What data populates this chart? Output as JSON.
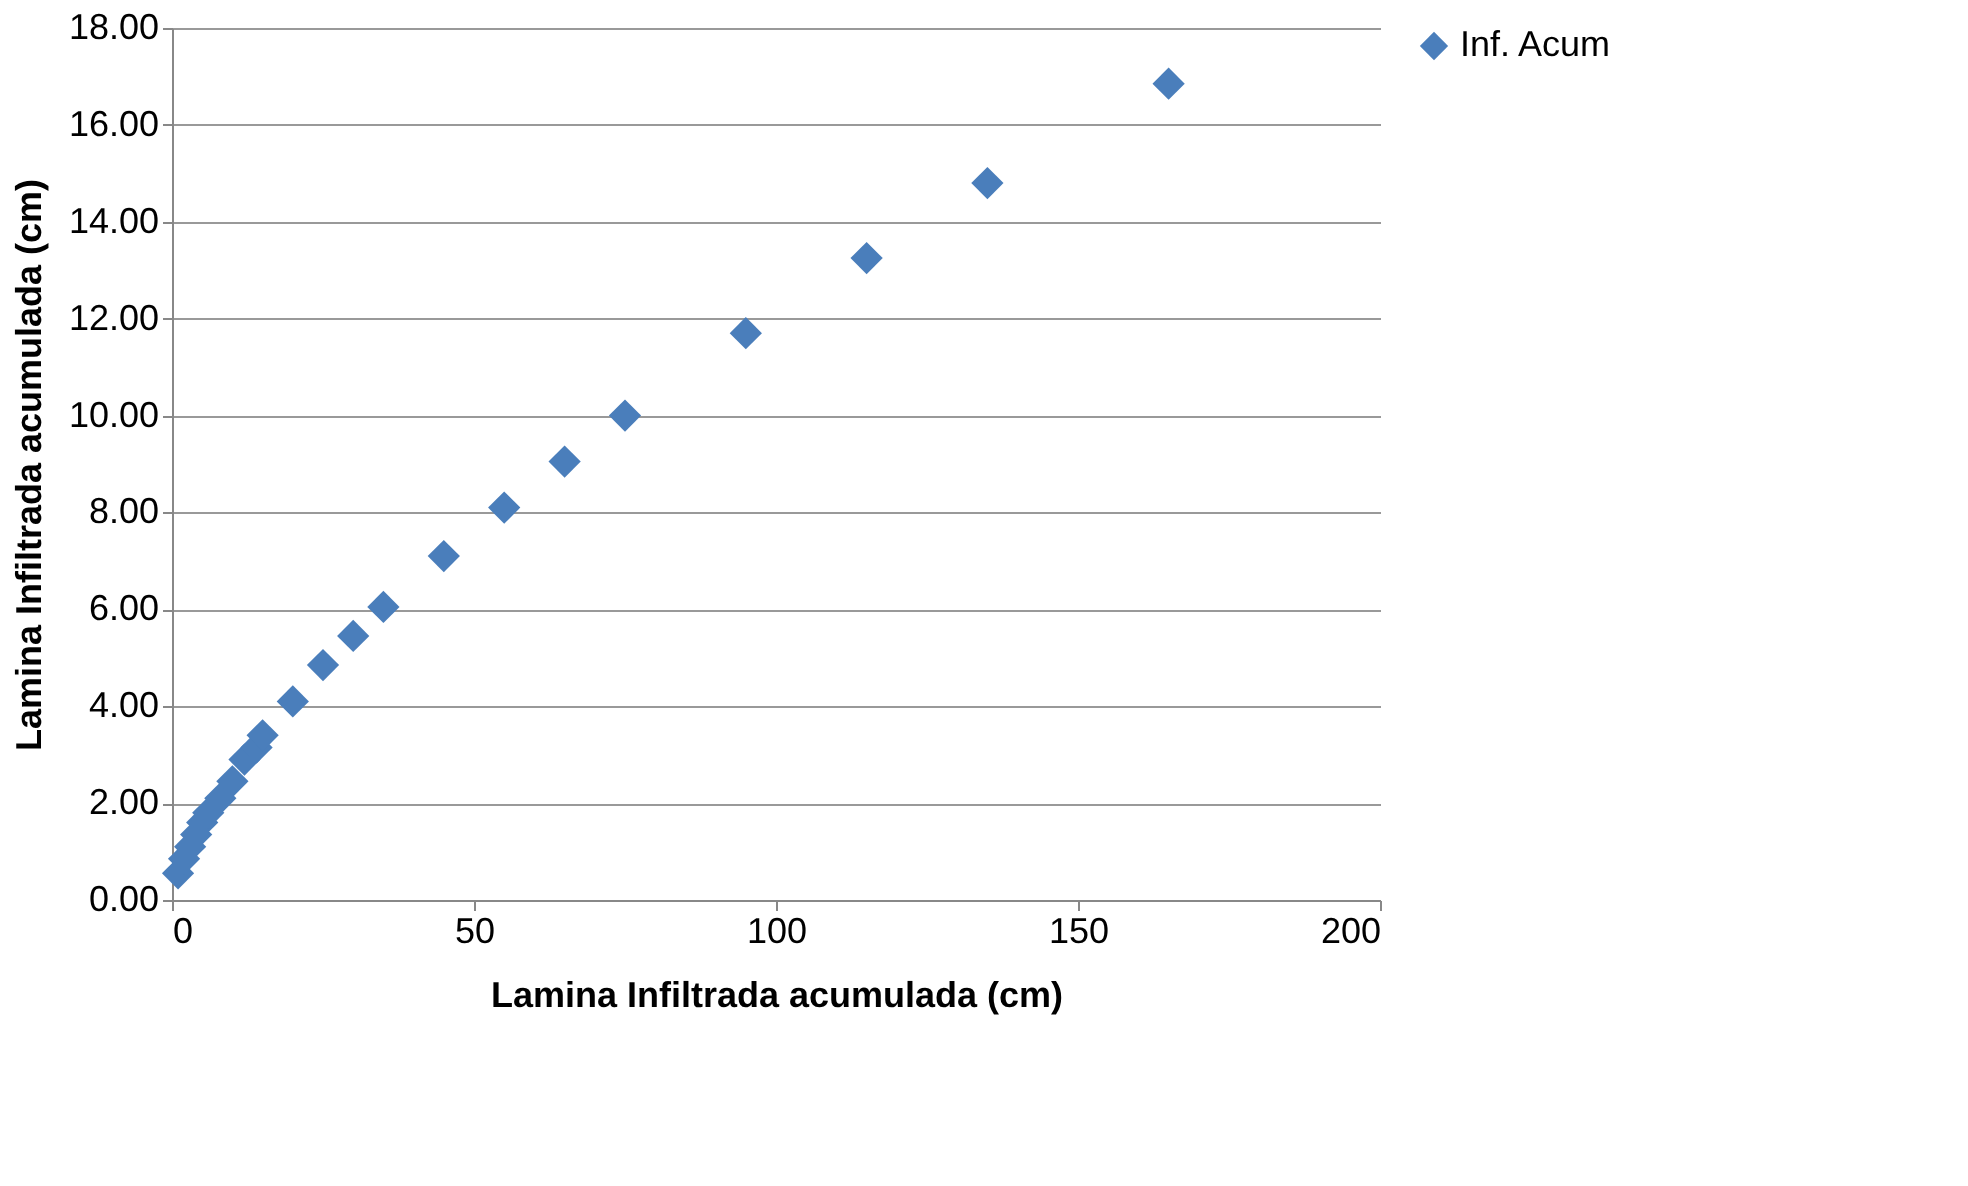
{
  "chart_data": {
    "type": "scatter",
    "xlabel": "Lamina Infiltrada acumulada (cm)",
    "ylabel": "Lamina Infiltrada acumulada (cm)",
    "xlim": [
      0,
      200
    ],
    "xticks": [
      0,
      50,
      100,
      150,
      200
    ],
    "ylim": [
      0,
      18
    ],
    "yticks": [
      {
        "value": 0,
        "label": "0.00"
      },
      {
        "value": 2,
        "label": "2.00"
      },
      {
        "value": 4,
        "label": "4.00"
      },
      {
        "value": 6,
        "label": "6.00"
      },
      {
        "value": 8,
        "label": "8.00"
      },
      {
        "value": 10,
        "label": "10.00"
      },
      {
        "value": 12,
        "label": "12.00"
      },
      {
        "value": 14,
        "label": "14.00"
      },
      {
        "value": 16,
        "label": "16.00"
      },
      {
        "value": 18,
        "label": "18.00"
      }
    ],
    "grid": "y",
    "legend": "right",
    "marker": "diamond",
    "series": [
      {
        "name": "Inf. Acum",
        "color": "#4a7ebb",
        "x": [
          1,
          2,
          3,
          4,
          5,
          6,
          8,
          10,
          12,
          14,
          15,
          20,
          25,
          30,
          35,
          45,
          55,
          65,
          75,
          95,
          115,
          135,
          165
        ],
        "values": [
          0.55,
          0.85,
          1.1,
          1.35,
          1.6,
          1.8,
          2.1,
          2.45,
          2.9,
          3.15,
          3.4,
          4.1,
          4.85,
          5.45,
          6.05,
          7.1,
          8.1,
          9.05,
          10.0,
          11.7,
          13.25,
          14.8,
          16.85
        ]
      }
    ]
  }
}
